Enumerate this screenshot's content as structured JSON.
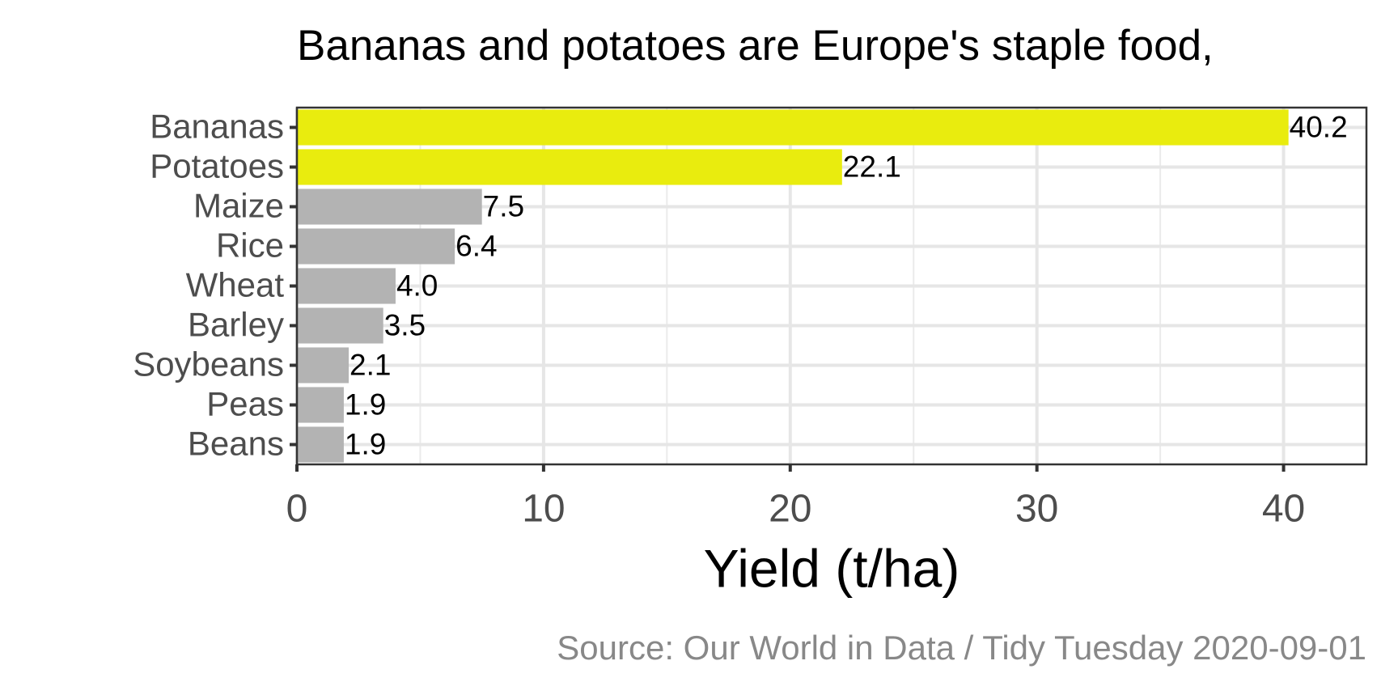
{
  "chart_data": {
    "type": "bar",
    "orientation": "horizontal",
    "title": "Bananas and potatoes are Europe's staple food,",
    "categories": [
      "Bananas",
      "Potatoes",
      "Maize",
      "Rice",
      "Wheat",
      "Barley",
      "Soybeans",
      "Peas",
      "Beans"
    ],
    "values": [
      40.2,
      22.1,
      7.5,
      6.4,
      4.0,
      3.5,
      2.1,
      1.9,
      1.9
    ],
    "value_labels": [
      "40.2",
      "22.1",
      "7.5",
      "6.4",
      "4.0",
      "3.5",
      "2.1",
      "1.9",
      "1.9"
    ],
    "colors": [
      "#e9ec0e",
      "#e9ec0e",
      "#b3b3b3",
      "#b3b3b3",
      "#b3b3b3",
      "#b3b3b3",
      "#b3b3b3",
      "#b3b3b3",
      "#b3b3b3"
    ],
    "xlim": [
      0,
      43.36
    ],
    "xticks": [
      0,
      10,
      20,
      30,
      40
    ],
    "x_minor_ticks": [
      5,
      15,
      25,
      35
    ],
    "x_label": "Yield (t/ha)",
    "caption": "Source: Our World in Data / Tidy Tuesday 2020-09-01",
    "grid": true
  }
}
